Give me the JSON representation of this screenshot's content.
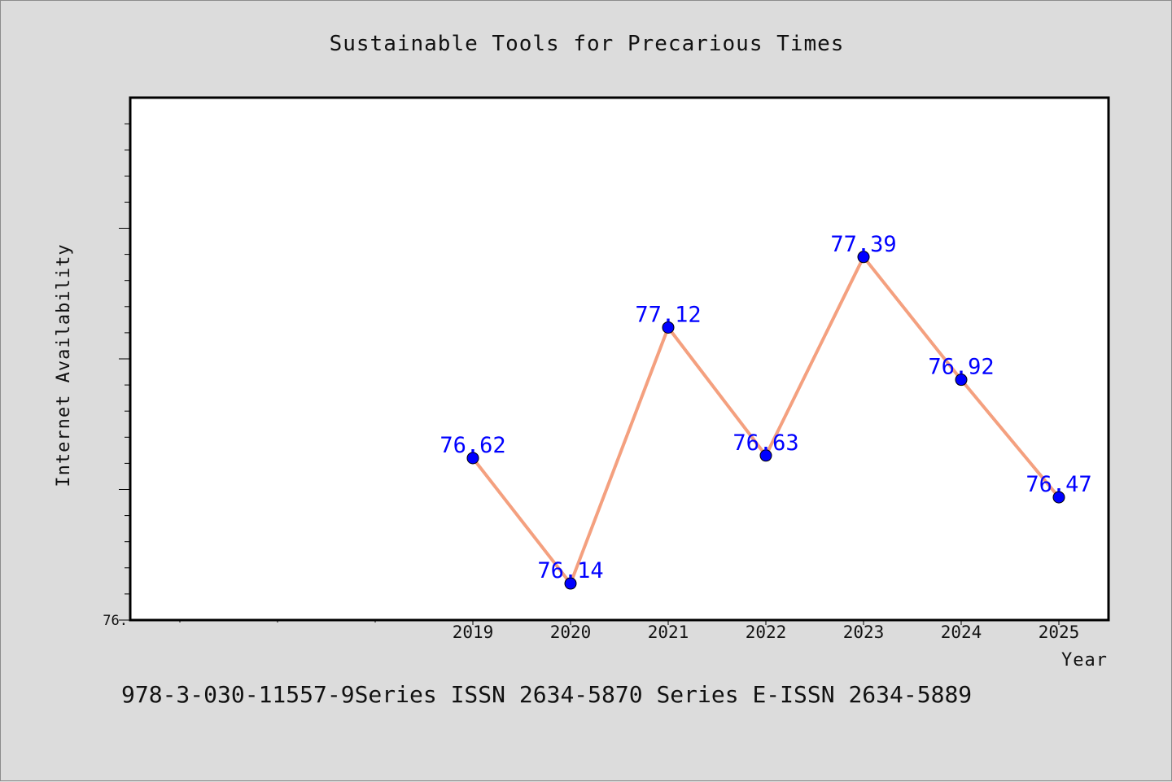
{
  "chart_data": {
    "type": "line",
    "title": "Sustainable Tools for Precarious Times",
    "xlabel": "Year",
    "ylabel": "Internet Availability",
    "categories": [
      "2019",
      "2020",
      "2021",
      "2022",
      "2023",
      "2024",
      "2025"
    ],
    "x_axis_slots": 10,
    "series": [
      {
        "values": [
          76.62,
          76.14,
          77.12,
          76.63,
          77.39,
          76.92,
          76.47
        ],
        "data_labels": [
          "76.62",
          "76.14",
          "77.12",
          "76.63",
          "77.39",
          "76.92",
          "76.47"
        ],
        "line_color": "#f4a07f",
        "marker_color": "#0000ff"
      }
    ],
    "ytick_label": "76.",
    "ylim": [
      76.0,
      78.0
    ],
    "grid": false
  },
  "footer": "978-3-030-11557-9Series ISSN 2634-5870 Series E-ISSN 2634-5889"
}
